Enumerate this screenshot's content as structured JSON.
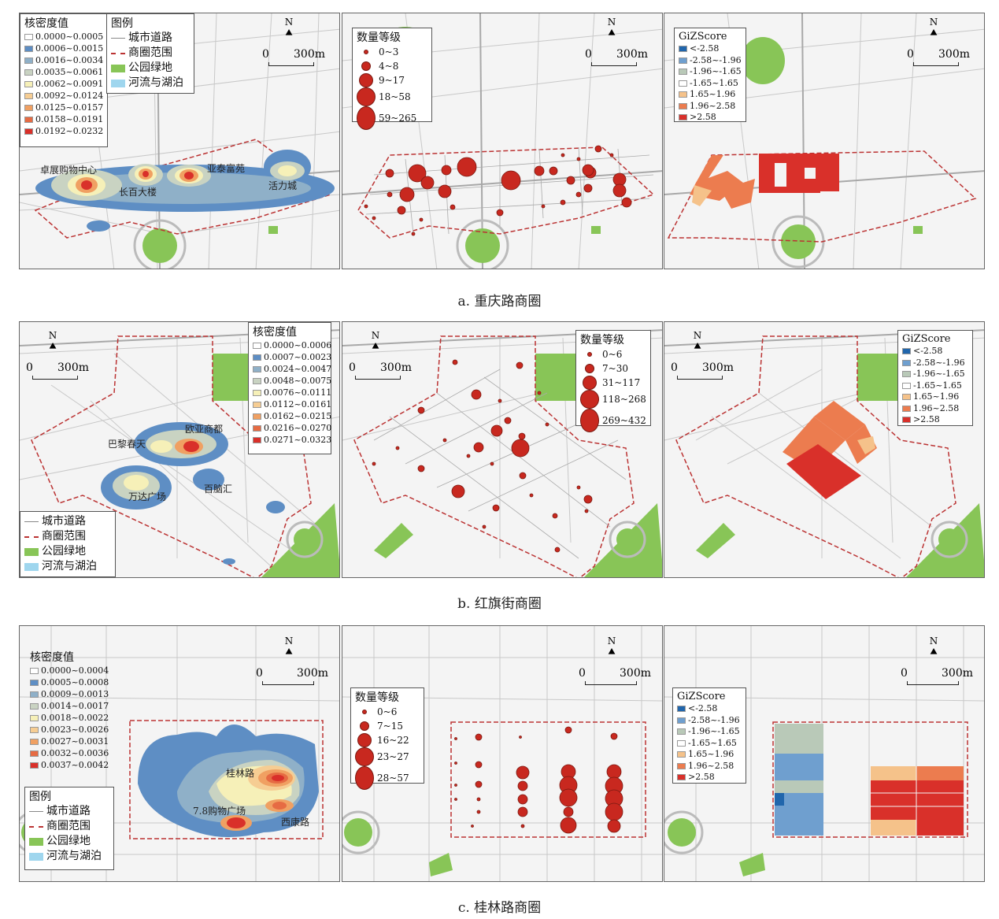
{
  "captions": {
    "a": "a. 重庆路商圈",
    "b": "b. 红旗街商圈",
    "c": "c. 桂林路商圈"
  },
  "common": {
    "north": "N",
    "scale_zero": "0",
    "scale_len": "300m"
  },
  "legend_basemap": {
    "title": "图例",
    "items": [
      {
        "label": "城市道路"
      },
      {
        "label": "商圈范围"
      },
      {
        "label": "公园绿地",
        "color": "#88c557"
      },
      {
        "label": "河流与湖泊",
        "color": "#9fd6ee"
      }
    ]
  },
  "kernel_colors": [
    "#ffffff",
    "#5e8ec4",
    "#8fb0c8",
    "#c9d3c2",
    "#f6f0b8",
    "#f6cd93",
    "#f0a062",
    "#e66b43",
    "#d9302a"
  ],
  "gi_colors": [
    "#2166ac",
    "#6f9fcf",
    "#b9c9b8",
    "#ffffff",
    "#f5c28a",
    "#ec7c4f",
    "#d9302a"
  ],
  "gi_labels": [
    "<-2.58",
    "-2.58~-1.96",
    "-1.96~-1.65",
    "-1.65~1.65",
    "1.65~1.96",
    "1.96~2.58",
    ">2.58"
  ],
  "gi_title": "GiZScore",
  "kernel_title": "核密度值",
  "grad_title": "数量等级",
  "a": {
    "kernel_labels": [
      "0.0000~0.0005",
      "0.0006~0.0015",
      "0.0016~0.0034",
      "0.0035~0.0061",
      "0.0062~0.0091",
      "0.0092~0.0124",
      "0.0125~0.0157",
      "0.0158~0.0191",
      "0.0192~0.0232"
    ],
    "grad_labels": [
      "0~3",
      "4~8",
      "9~17",
      "18~58",
      "59~265"
    ],
    "places": [
      "卓展购物中心",
      "长百大楼",
      "亚泰富苑",
      "活力城"
    ]
  },
  "b": {
    "kernel_labels": [
      "0.0000~0.0006",
      "0.0007~0.0023",
      "0.0024~0.0047",
      "0.0048~0.0075",
      "0.0076~0.0111",
      "0.0112~0.0161",
      "0.0162~0.0215",
      "0.0216~0.0270",
      "0.0271~0.0323"
    ],
    "grad_labels": [
      "0~6",
      "7~30",
      "31~117",
      "118~268",
      "269~432"
    ],
    "places": [
      "巴黎春天",
      "欧亚商都",
      "万达广场",
      "百脑汇"
    ]
  },
  "c": {
    "kernel_labels": [
      "0.0000~0.0004",
      "0.0005~0.0008",
      "0.0009~0.0013",
      "0.0014~0.0017",
      "0.0018~0.0022",
      "0.0023~0.0026",
      "0.0027~0.0031",
      "0.0032~0.0036",
      "0.0037~0.0042"
    ],
    "grad_labels": [
      "0~6",
      "7~15",
      "16~22",
      "23~27",
      "28~57"
    ],
    "places": [
      "桂林路",
      "7.8购物广场",
      "西康路"
    ]
  }
}
